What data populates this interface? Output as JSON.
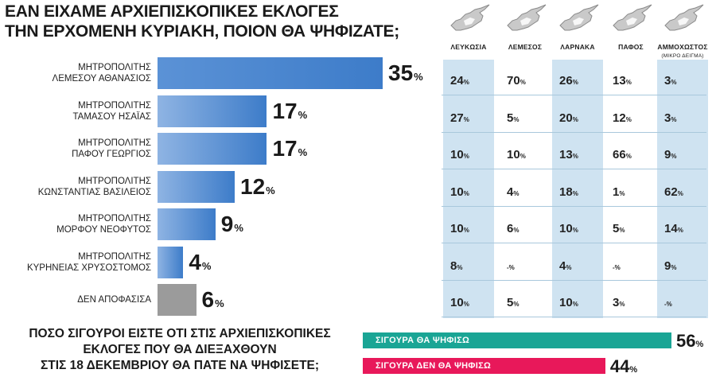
{
  "title_lines": [
    "ΕΑΝ ΕΙΧΑΜΕ ΑΡΧΙΕΠΙΣΚΟΠΙΚΕΣ ΕΚΛΟΓΕΣ",
    "ΤΗΝ ΕΡΧΟΜΕΝΗ ΚΥΡΙΑΚΗ, ΠΟΙΟΝ ΘΑ ΨΗΦΙΖΑΤΕ;"
  ],
  "pct_symbol": "%",
  "colors": {
    "bar_dark": "#3d7cc9",
    "bar_light": "#8fb4e3",
    "undecided": "#9b9b9b",
    "table_col": "#cfe3f1",
    "sure_yes": "#1aa595",
    "sure_no": "#e8185a"
  },
  "chart_data": [
    {
      "type": "bar",
      "orientation": "horizontal",
      "title": "ΕΑΝ ΕΙΧΑΜΕ ΑΡΧΙΕΠΙΣΚΟΠΙΚΕΣ ΕΚΛΟΓΕΣ ΤΗΝ ΕΡΧΟΜΕΝΗ ΚΥΡΙΑΚΗ, ΠΟΙΟΝ ΘΑ ΨΗΦΙΖΑΤΕ;",
      "unit": "%",
      "categories": [
        [
          "ΜΗΤΡΟΠΟΛΙΤΗΣ",
          "ΛΕΜΕΣΟΥ ΑΘΑΝΑΣΙΟΣ"
        ],
        [
          "ΜΗΤΡΟΠΟΛΙΤΗΣ",
          "ΤΑΜΑΣΟΥ ΗΣΑΪΑΣ"
        ],
        [
          "ΜΗΤΡΟΠΟΛΙΤΗΣ",
          "ΠΑΦΟΥ ΓΕΩΡΓΙΟΣ"
        ],
        [
          "ΜΗΤΡΟΠΟΛΙΤΗΣ",
          "ΚΩΝΣΤΑΝΤΙΑΣ ΒΑΣΙΛΕΙΟΣ"
        ],
        [
          "ΜΗΤΡΟΠΟΛΙΤΗΣ",
          "ΜΟΡΦΟΥ ΝΕΟΦΥΤΟΣ"
        ],
        [
          "ΜΗΤΡΟΠΟΛΙΤΗΣ",
          "ΚΥΡΗΝΕΙΑΣ ΧΡΥΣΟΣΤΟΜΟΣ"
        ],
        [
          "ΔΕΝ ΑΠΟΦΑΣΙΣΑ"
        ]
      ],
      "values": [
        35,
        17,
        17,
        12,
        9,
        4,
        6
      ],
      "value_labels": [
        "35",
        "17",
        "17",
        "12",
        "9",
        "4",
        "6"
      ],
      "xlim": [
        0,
        35
      ]
    },
    {
      "type": "table",
      "columns": [
        {
          "label": "ΛΕΥΚΩΣΙΑ",
          "sublabel": "",
          "values": [
            "24",
            "27",
            "10",
            "10",
            "10",
            "8",
            "10"
          ]
        },
        {
          "label": "ΛΕΜΕΣΟΣ",
          "sublabel": "",
          "values": [
            "70",
            "5",
            "10",
            "4",
            "6",
            "-",
            "5"
          ]
        },
        {
          "label": "ΛΑΡΝΑΚΑ",
          "sublabel": "",
          "values": [
            "26",
            "20",
            "13",
            "18",
            "10",
            "4",
            "10"
          ]
        },
        {
          "label": "ΠΑΦΟΣ",
          "sublabel": "",
          "values": [
            "13",
            "12",
            "66",
            "1",
            "5",
            "-",
            "3"
          ]
        },
        {
          "label": "ΑΜΜΟΧΩΣΤΟΣ",
          "sublabel": "(ΜΙΚΡΟ ΔΕΙΓΜΑ)",
          "values": [
            "3",
            "3",
            "9",
            "62",
            "14",
            "9",
            "-"
          ]
        }
      ],
      "shaded_columns": [
        0,
        2,
        4
      ],
      "map_icon": "cyprus-map-icon"
    },
    {
      "type": "bar",
      "orientation": "horizontal",
      "title": "ΠΟΣΟ ΣΙΓΟΥΡΟΙ ΕΙΣΤΕ ΟΤΙ ΣΤΙΣ ΑΡΧΙΕΠΙΣΚΟΠΙΚΕΣ ΕΚΛΟΓΕΣ ΠΟΥ ΘΑ ΔΙΕΞΑΧΘΟΥΝ ΣΤΙΣ 18 ΔΕΚΕΜΒΡΙΟΥ ΘΑ ΠΑΤΕ ΝΑ ΨΗΦΙΣΕΤΕ;",
      "categories": [
        "ΣΙΓΟΥΡΑ ΘΑ ΨΗΦΙΣΩ",
        "ΣΙΓΟΥΡΑ ΔΕΝ ΘΑ ΨΗΦΙΣΩ"
      ],
      "values": [
        56,
        44
      ],
      "value_labels": [
        "56",
        "44"
      ],
      "xlim": [
        0,
        56
      ],
      "unit": "%"
    }
  ],
  "question_lines": [
    "ΠΟΣΟ ΣΙΓΟΥΡΟΙ ΕΙΣΤΕ ΟΤΙ ΣΤΙΣ ΑΡΧΙΕΠΙΣΚΟΠΙΚΕΣ",
    "ΕΚΛΟΓΕΣ ΠΟΥ ΘΑ ΔΙΕΞΑΧΘΟΥΝ",
    "ΣΤΙΣ 18 ΔΕΚΕΜΒΡΙΟΥ ΘΑ ΠΑΤΕ ΝΑ ΨΗΦΙΣΕΤΕ;"
  ]
}
